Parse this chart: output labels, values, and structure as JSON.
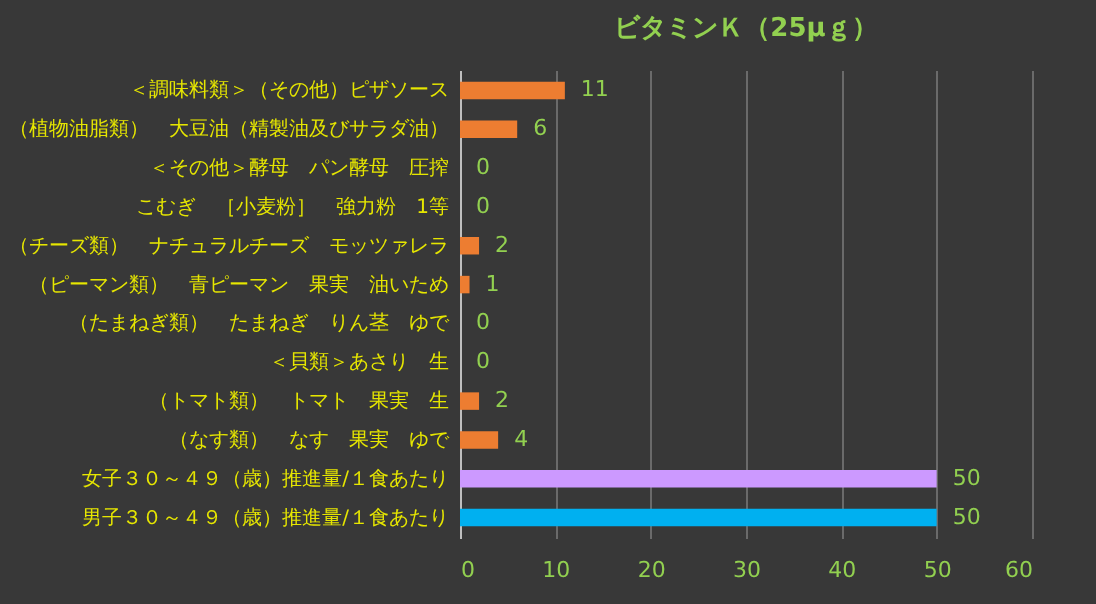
{
  "chart_data": {
    "type": "bar",
    "orientation": "horizontal",
    "title": "ビタミンＫ（25μｇ）",
    "categories": [
      "＜調味料類＞（その他）ピザソース",
      "（植物油脂類）　大豆油（精製油及びサラダ油）",
      "＜その他＞酵母　パン酵母　圧搾",
      "こむぎ　［小麦粉］　強力粉　1等",
      "（チーズ類）　ナチュラルチーズ　モッツァレラ",
      "（ピーマン類）　青ピーマン　果実　油いため",
      "（たまねぎ類）　たまねぎ　りん茎　ゆで",
      "＜貝類＞あさり　生",
      "（トマト類）　トマト　果実　生",
      "（なす類）　なす　果実　ゆで",
      "女子３０～４９（歳）推進量/１食あたり",
      "男子３０～４９（歳）推進量/１食あたり"
    ],
    "values": [
      11,
      6,
      0,
      0,
      2,
      1,
      0,
      0,
      2,
      4,
      50,
      50
    ],
    "colors": [
      "#ed7d31",
      "#ed7d31",
      "#ed7d31",
      "#ed7d31",
      "#ed7d31",
      "#ed7d31",
      "#ed7d31",
      "#ed7d31",
      "#ed7d31",
      "#ed7d31",
      "#cc99ff",
      "#00b0f0"
    ],
    "xlim": [
      0,
      60
    ],
    "xticks": [
      0,
      10,
      20,
      30,
      40,
      50,
      60
    ],
    "grid": "x",
    "data_labels": true
  }
}
